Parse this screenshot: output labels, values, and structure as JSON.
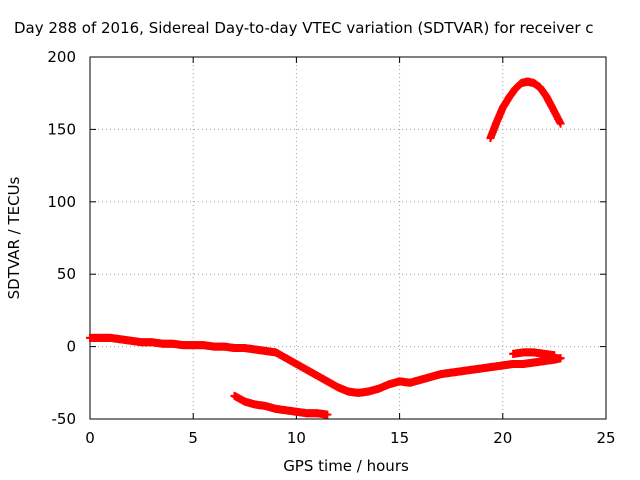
{
  "chart_data": {
    "type": "scatter",
    "title": "Day 288 of 2016, Sidereal Day-to-day VTEC variation (SDTVAR) for receiver c",
    "xlabel": "GPS time / hours",
    "ylabel": "SDTVAR / TECUs",
    "xlim": [
      0,
      25
    ],
    "ylim": [
      -50,
      200
    ],
    "xticks": [
      0,
      5,
      10,
      15,
      20,
      25
    ],
    "yticks": [
      -50,
      0,
      50,
      100,
      150,
      200
    ],
    "xtick_labels": [
      "0",
      "5",
      "10",
      "15",
      "20",
      "25"
    ],
    "ytick_labels": [
      "-50",
      "0",
      "50",
      "100",
      "150",
      "200"
    ],
    "grid": true,
    "legend": "none",
    "marker": "plus",
    "color": "#ff0000",
    "series": [
      {
        "x": [
          0.0,
          0.5,
          1.0,
          1.5,
          2.0,
          2.5,
          3.0,
          3.5,
          4.0,
          4.5,
          5.0,
          5.5,
          6.0,
          6.5,
          7.0,
          7.5,
          8.0,
          8.5,
          9.0,
          9.5,
          10.0,
          10.5,
          11.0,
          11.5,
          12.0,
          12.5,
          13.0,
          13.5,
          14.0,
          14.5,
          15.0,
          15.5,
          16.0,
          16.5,
          17.0,
          17.5,
          18.0,
          18.5,
          19.0,
          19.5,
          20.0,
          20.5,
          21.0,
          21.5,
          22.0,
          22.5,
          22.8
        ],
        "y": [
          6,
          6,
          6,
          5,
          4,
          3,
          3,
          2,
          2,
          1,
          1,
          1,
          0,
          0,
          -1,
          -1,
          -2,
          -3,
          -4,
          -8,
          -12,
          -16,
          -20,
          -24,
          -28,
          -31,
          -32,
          -31,
          -29,
          -26,
          -24,
          -25,
          -23,
          -21,
          -19,
          -18,
          -17,
          -16,
          -15,
          -14,
          -13,
          -12,
          -12,
          -11,
          -10,
          -9,
          -8
        ]
      },
      {
        "x": [
          7.0,
          7.5,
          8.0,
          8.5,
          9.0,
          9.5,
          10.0,
          10.5,
          11.0,
          11.5
        ],
        "y": [
          -34,
          -38,
          -40,
          -41,
          -43,
          -44,
          -45,
          -46,
          -46,
          -47
        ]
      },
      {
        "x": [
          20.5,
          21.0,
          21.5,
          22.0,
          22.5
        ],
        "y": [
          -5,
          -4,
          -4,
          -5,
          -6
        ]
      },
      {
        "x": [
          19.4,
          19.7,
          20.0,
          20.3,
          20.6,
          20.9,
          21.2,
          21.5,
          21.8,
          22.1,
          22.4,
          22.8
        ],
        "y": [
          144,
          155,
          165,
          172,
          178,
          182,
          183,
          182,
          179,
          173,
          165,
          154
        ]
      }
    ]
  }
}
